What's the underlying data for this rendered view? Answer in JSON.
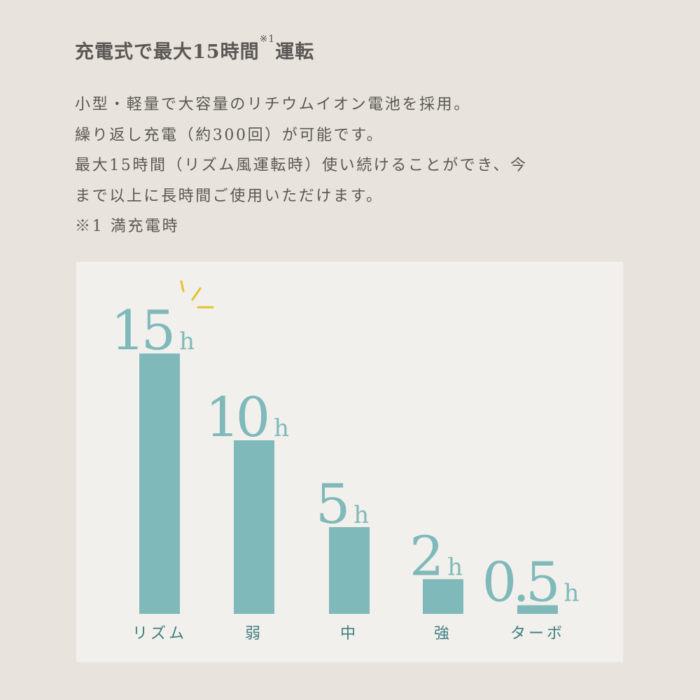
{
  "title": {
    "main": "充電式で最大15時間",
    "note_mark": "※1",
    "suffix": "運転"
  },
  "description": [
    "小型・軽量で大容量のリチウムイオン電池を採用。",
    "繰り返し充電（約300回）が可能です。",
    "最大15時間（リズム風運転時）使い続けることができ、今",
    "まで以上に長時間ご使用いただけます。",
    "※1 満充電時"
  ],
  "colors": {
    "bar": "#7fb9ba",
    "label": "#3f7f80",
    "sparkle": "#e6c230",
    "panel": "#f2f0ec",
    "background": "#e8e4dd"
  },
  "chart_data": {
    "type": "bar",
    "categories": [
      "リズム",
      "弱",
      "中",
      "強",
      "ターボ"
    ],
    "values": [
      15,
      10,
      5,
      2,
      0.5
    ],
    "data_labels": [
      "15",
      "10",
      "5",
      "2",
      "0.5"
    ],
    "unit": "h",
    "ylim": [
      0,
      15
    ],
    "grid": false,
    "highlight": "リズム"
  }
}
